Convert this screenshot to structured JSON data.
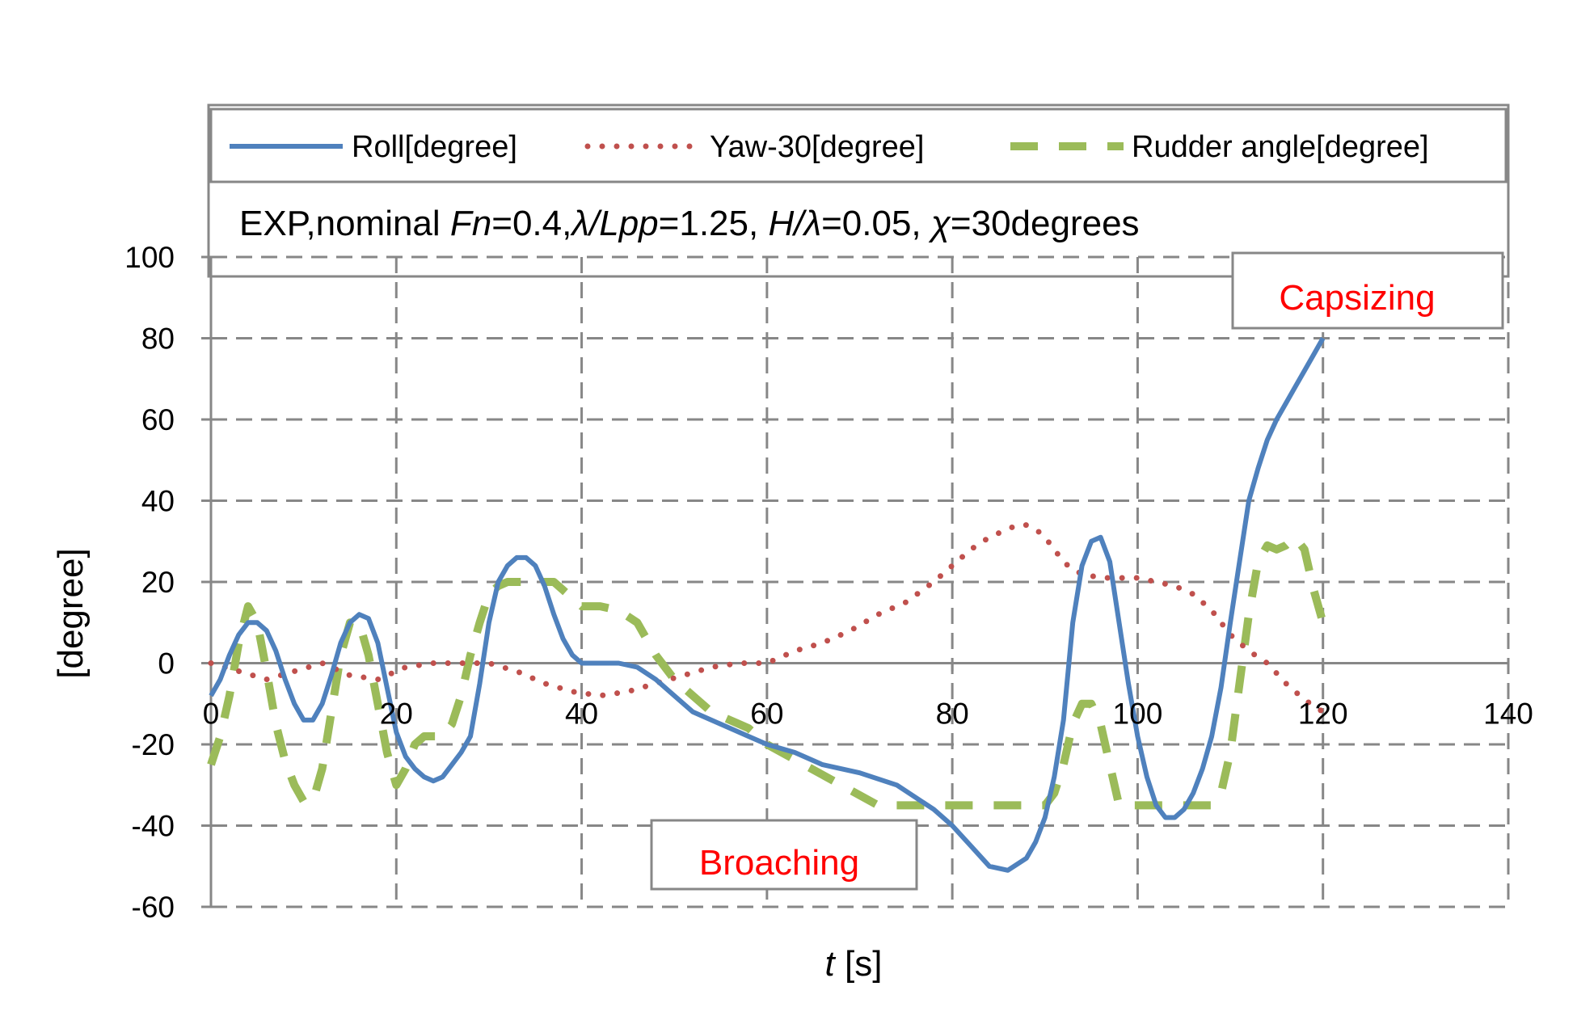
{
  "chart_data": {
    "type": "line",
    "subtitle_parts": [
      {
        "t": "EXP,nominal ",
        "i": false
      },
      {
        "t": "Fn",
        "i": true
      },
      {
        "t": "=0.4,",
        "i": false
      },
      {
        "t": "λ/Lpp",
        "i": true
      },
      {
        "t": "=1.25, ",
        "i": false
      },
      {
        "t": "H/λ",
        "i": true
      },
      {
        "t": "=0.05, ",
        "i": false
      },
      {
        "t": "χ",
        "i": true
      },
      {
        "t": "=30degrees",
        "i": false
      }
    ],
    "xlabel_italic": "t",
    "xlabel_unit": " [s]",
    "ylabel": "[degree]",
    "xlim": [
      0,
      140
    ],
    "ylim": [
      -60,
      100
    ],
    "xticks": [
      0,
      20,
      40,
      60,
      80,
      100,
      120,
      140
    ],
    "yticks": [
      -60,
      -40,
      -20,
      0,
      20,
      40,
      60,
      80,
      100
    ],
    "grid": true,
    "legend_position": "top",
    "series": [
      {
        "name": "Roll[degree]",
        "color": "#4f81bd",
        "style": "solid",
        "x": [
          0,
          1,
          2,
          3,
          4,
          5,
          6,
          7,
          8,
          9,
          10,
          11,
          12,
          13,
          14,
          15,
          16,
          17,
          18,
          19,
          20,
          21,
          22,
          23,
          24,
          25,
          26,
          27,
          28,
          29,
          30,
          31,
          32,
          33,
          34,
          35,
          36,
          37,
          38,
          39,
          40,
          41,
          42,
          44,
          46,
          48,
          50,
          52,
          55,
          58,
          60,
          63,
          66,
          70,
          74,
          78,
          80,
          82,
          84,
          86,
          88,
          89,
          90,
          91,
          92,
          93,
          94,
          95,
          96,
          97,
          98,
          99,
          100,
          101,
          102,
          103,
          104,
          105,
          106,
          107,
          108,
          109,
          110,
          111,
          112,
          113,
          114,
          115,
          116,
          117,
          118,
          119,
          120
        ],
        "y": [
          -8,
          -4,
          2,
          7,
          10,
          10,
          8,
          3,
          -4,
          -10,
          -14,
          -14,
          -10,
          -3,
          5,
          10,
          12,
          11,
          5,
          -6,
          -17,
          -23,
          -26,
          -28,
          -29,
          -28,
          -25,
          -22,
          -18,
          -5,
          10,
          20,
          24,
          26,
          26,
          24,
          19,
          12,
          6,
          2,
          0,
          0,
          0,
          0,
          -1,
          -4,
          -8,
          -12,
          -15,
          -18,
          -20,
          -22,
          -25,
          -27,
          -30,
          -36,
          -40,
          -45,
          -50,
          -51,
          -48,
          -44,
          -38,
          -28,
          -14,
          10,
          24,
          30,
          31,
          25,
          10,
          -5,
          -18,
          -28,
          -35,
          -38,
          -38,
          -36,
          -32,
          -26,
          -18,
          -6,
          10,
          25,
          40,
          48,
          55,
          60,
          64,
          68,
          72,
          76,
          80
        ]
      },
      {
        "name": "Yaw-30[degree]",
        "color": "#c0504d",
        "style": "dotted",
        "x": [
          0,
          3,
          6,
          9,
          12,
          15,
          18,
          21,
          24,
          27,
          30,
          33,
          36,
          39,
          42,
          45,
          48,
          51,
          54,
          57,
          60,
          63,
          66,
          69,
          72,
          75,
          78,
          80,
          82,
          84,
          86,
          87,
          88,
          89,
          90,
          91,
          92,
          93,
          94,
          96,
          98,
          100,
          102,
          104,
          106,
          108,
          110,
          112,
          114,
          116,
          118,
          120
        ],
        "y": [
          0,
          -2,
          -4,
          -2,
          0,
          -3,
          -4,
          -1,
          0,
          0,
          0,
          -2,
          -5,
          -7,
          -8,
          -7,
          -5,
          -3,
          -1,
          0,
          0,
          3,
          5,
          8,
          12,
          15,
          20,
          24,
          28,
          31,
          33,
          34,
          34,
          33,
          31,
          28,
          25,
          23,
          22,
          21,
          21,
          21,
          20,
          19,
          17,
          13,
          7,
          3,
          0,
          -5,
          -9,
          -12
        ]
      },
      {
        "name": "Rudder angle[degree]",
        "color": "#9bbb59",
        "style": "dashed",
        "x": [
          0,
          1,
          2,
          3,
          4,
          5,
          6,
          7,
          8,
          9,
          10,
          11,
          12,
          13,
          14,
          15,
          16,
          17,
          18,
          19,
          20,
          21,
          22,
          23,
          24,
          25,
          26,
          27,
          28,
          29,
          30,
          31,
          32,
          33,
          34,
          35,
          36,
          37,
          38,
          39,
          40,
          42,
          44,
          46,
          48,
          50,
          52,
          54,
          56,
          58,
          60,
          64,
          68,
          72,
          76,
          80,
          84,
          88,
          90,
          91,
          92,
          93,
          94,
          95,
          96,
          97,
          98,
          99,
          100,
          102,
          104,
          106,
          108,
          109,
          110,
          111,
          112,
          113,
          114,
          115,
          116,
          117,
          118,
          119,
          120
        ],
        "y": [
          -25,
          -18,
          -8,
          5,
          14,
          10,
          -2,
          -15,
          -24,
          -30,
          -34,
          -34,
          -26,
          -12,
          2,
          10,
          10,
          2,
          -10,
          -22,
          -30,
          -26,
          -20,
          -18,
          -18,
          -18,
          -15,
          -8,
          2,
          10,
          17,
          19,
          20,
          20,
          20,
          20,
          20,
          20,
          18,
          16,
          14,
          14,
          13,
          10,
          2,
          -4,
          -8,
          -12,
          -14,
          -16,
          -20,
          -25,
          -30,
          -35,
          -35,
          -35,
          -35,
          -35,
          -35,
          -32,
          -25,
          -15,
          -10,
          -10,
          -15,
          -25,
          -35,
          -35,
          -35,
          -35,
          -35,
          -35,
          -35,
          -32,
          -22,
          -5,
          12,
          25,
          29,
          28,
          29,
          31,
          28,
          18,
          10
        ]
      }
    ],
    "annotations": [
      {
        "text": "Capsizing",
        "x": 121,
        "y": 92
      },
      {
        "text": "Broaching",
        "x": 61,
        "y": -49
      }
    ]
  }
}
